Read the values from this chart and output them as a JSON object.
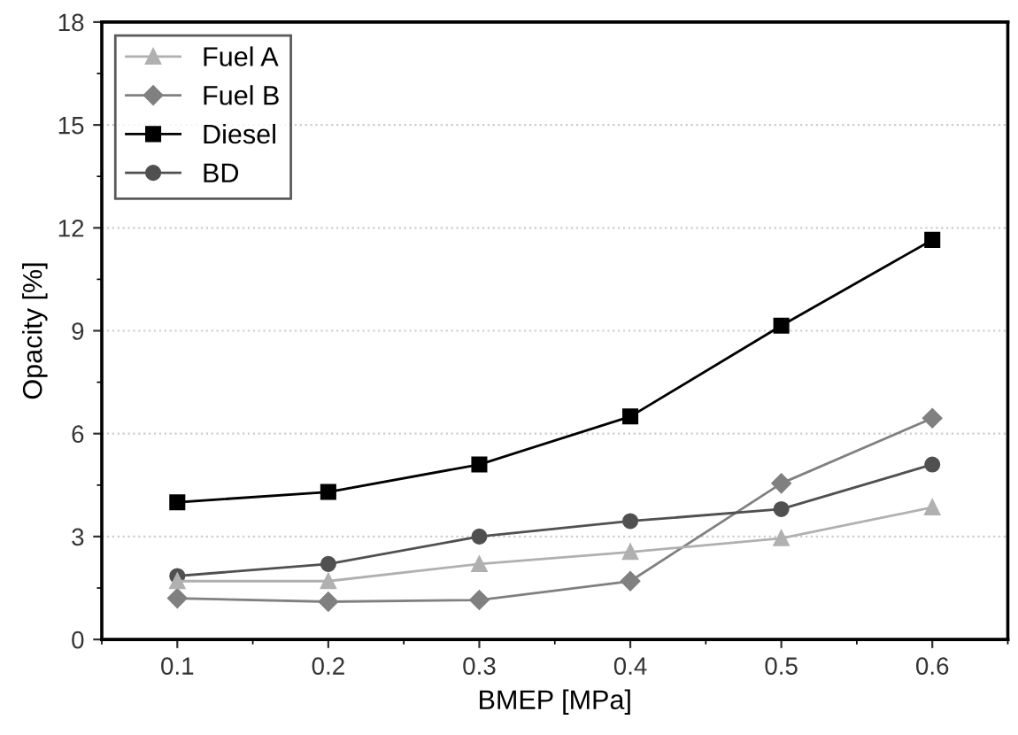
{
  "chart_data": {
    "type": "line",
    "xlabel": "BMEP [MPa]",
    "ylabel": "Opacity [%]",
    "x": [
      0.1,
      0.2,
      0.3,
      0.4,
      0.5,
      0.6
    ],
    "series": [
      {
        "name": "Fuel A",
        "color": "#b0b0b0",
        "marker": "triangle",
        "values": [
          1.7,
          1.7,
          2.2,
          2.55,
          2.95,
          3.85
        ]
      },
      {
        "name": "Fuel B",
        "color": "#808080",
        "marker": "diamond",
        "values": [
          1.2,
          1.1,
          1.15,
          1.7,
          4.55,
          6.45
        ]
      },
      {
        "name": "Diesel",
        "color": "#000000",
        "marker": "square",
        "values": [
          4.0,
          4.3,
          5.1,
          6.5,
          9.15,
          11.65
        ]
      },
      {
        "name": "BD",
        "color": "#505050",
        "marker": "circle",
        "values": [
          1.85,
          2.2,
          3.0,
          3.45,
          3.8,
          5.1
        ]
      }
    ],
    "xlim": [
      0.05,
      0.65
    ],
    "xticks": [
      0.1,
      0.2,
      0.3,
      0.4,
      0.5,
      0.6
    ],
    "ylim": [
      0,
      18
    ],
    "yticks": [
      0,
      3,
      6,
      9,
      12,
      15,
      18
    ],
    "grid": "y",
    "legend": "top left",
    "line_style": "solid"
  }
}
